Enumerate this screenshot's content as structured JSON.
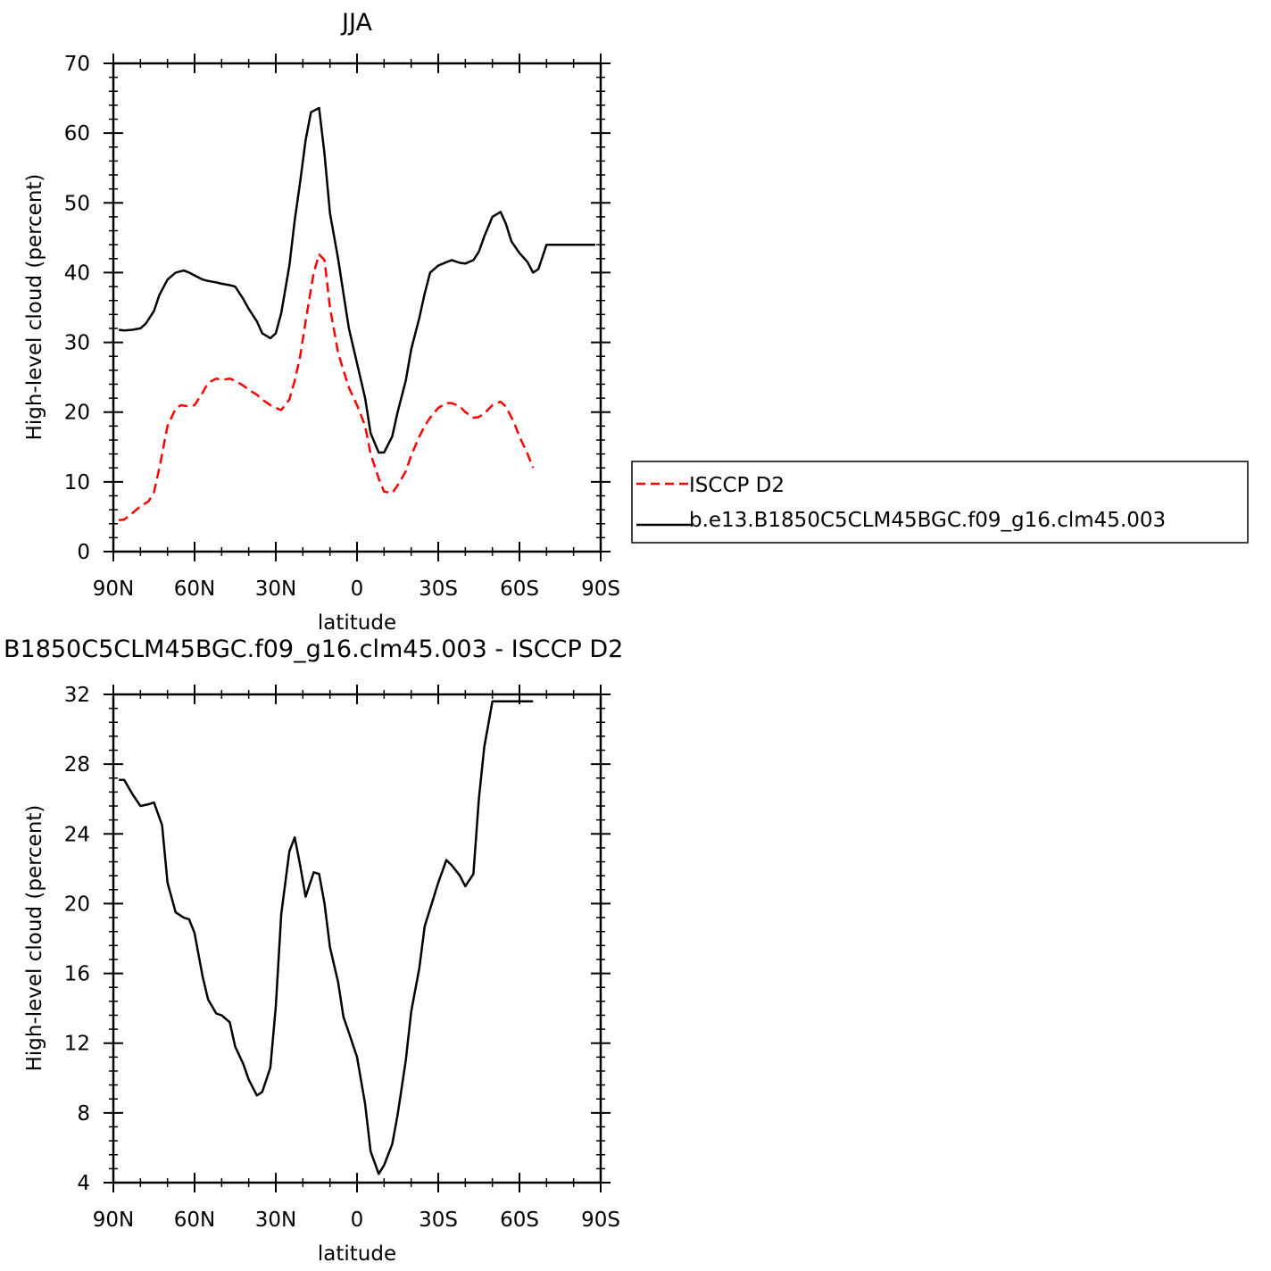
{
  "chart_data": [
    {
      "type": "line",
      "title": "JJA",
      "xlabel": "latitude",
      "ylabel": "High-level cloud (percent)",
      "xlim": [
        -90,
        90
      ],
      "ylim": [
        0,
        70
      ],
      "x_ticks": [
        -90,
        -60,
        -30,
        0,
        30,
        60,
        90
      ],
      "x_tick_labels": [
        "90N",
        "60N",
        "30N",
        "0",
        "30S",
        "60S",
        "90S"
      ],
      "y_ticks": [
        0,
        10,
        20,
        30,
        40,
        50,
        60,
        70
      ],
      "y_tick_labels": [
        "0",
        "10",
        "20",
        "30",
        "40",
        "50",
        "60",
        "70"
      ],
      "legend": "right",
      "series": [
        {
          "name": "ISCCP D2",
          "color": "#ff0000",
          "style": "dashed",
          "x": [
            -88,
            -86,
            -83,
            -80,
            -77,
            -75,
            -73,
            -70,
            -67,
            -65,
            -62,
            -60,
            -57,
            -55,
            -52,
            -50,
            -47,
            -45,
            -42,
            -40,
            -37,
            -35,
            -32,
            -30,
            -28,
            -25,
            -23,
            -21,
            -19,
            -16,
            -14,
            -12,
            -10,
            -7,
            -5,
            -3,
            0,
            3,
            5,
            8,
            10,
            13,
            15,
            18,
            20,
            23,
            25,
            27,
            30,
            33,
            35,
            38,
            40,
            43,
            45,
            47,
            50,
            53,
            55,
            58,
            60,
            63,
            65
          ],
          "values": [
            4.5,
            4.6,
            5.5,
            6.5,
            7.2,
            8.5,
            12,
            18,
            20.5,
            21,
            20.8,
            21,
            22.8,
            24.2,
            24.8,
            24.6,
            24.8,
            24.5,
            23.8,
            23.2,
            22.5,
            21.8,
            21,
            20.6,
            20.3,
            21.8,
            24.5,
            28,
            33,
            40,
            42.6,
            41.8,
            35,
            28.5,
            26,
            23.5,
            21,
            18,
            14,
            10.5,
            8.6,
            8.4,
            9.5,
            11.5,
            13.8,
            16.5,
            18,
            19.2,
            20.6,
            21.3,
            21.3,
            20.8,
            20,
            19.2,
            19.3,
            19.8,
            21,
            21.5,
            20.8,
            18.5,
            16.5,
            14,
            12
          ]
        },
        {
          "name": "b.e13.B1850C5CLM45BGC.f09_g16.clm45.003",
          "color": "#000000",
          "style": "solid",
          "x": [
            -88,
            -86,
            -83,
            -80,
            -78,
            -75,
            -73,
            -70,
            -67,
            -64,
            -62,
            -60,
            -57,
            -55,
            -52,
            -50,
            -47,
            -45,
            -42,
            -40,
            -37,
            -35,
            -32,
            -30,
            -28,
            -25,
            -23,
            -21,
            -19,
            -17,
            -14,
            -12,
            -10,
            -7,
            -5,
            -3,
            0,
            3,
            5,
            8,
            10,
            13,
            15,
            18,
            20,
            23,
            25,
            27,
            30,
            33,
            35,
            38,
            40,
            43,
            45,
            47,
            50,
            53,
            55,
            57,
            60,
            63,
            65,
            67,
            70,
            73,
            75,
            78,
            80,
            83,
            85,
            88
          ],
          "values": [
            31.8,
            31.7,
            31.8,
            32,
            32.7,
            34.5,
            36.8,
            39,
            40,
            40.3,
            40,
            39.6,
            39,
            38.8,
            38.6,
            38.4,
            38.2,
            38,
            36.2,
            34.8,
            33,
            31.3,
            30.6,
            31.3,
            34.2,
            41,
            47.5,
            53,
            59,
            63,
            63.6,
            57,
            48.5,
            42,
            37,
            32,
            27,
            22,
            17,
            14.2,
            14.2,
            16.5,
            20,
            24.5,
            29,
            33.5,
            37,
            40,
            41,
            41.5,
            41.8,
            41.4,
            41.3,
            41.8,
            43,
            45.2,
            48,
            48.7,
            47,
            44.5,
            42.8,
            41.5,
            40,
            40.5,
            44,
            44,
            44,
            44,
            44,
            44,
            44,
            44
          ]
        }
      ]
    },
    {
      "type": "line",
      "title": "B1850C5CLM45BGC.f09_g16.clm45.003 - ISCCP D2",
      "xlabel": "latitude",
      "ylabel": "High-level cloud (percent)",
      "xlim": [
        -90,
        90
      ],
      "ylim": [
        4,
        32
      ],
      "x_ticks": [
        -90,
        -60,
        -30,
        0,
        30,
        60,
        90
      ],
      "x_tick_labels": [
        "90N",
        "60N",
        "30N",
        "0",
        "30S",
        "60S",
        "90S"
      ],
      "y_ticks": [
        4,
        8,
        12,
        16,
        20,
        24,
        28,
        32
      ],
      "y_tick_labels": [
        "4",
        "8",
        "12",
        "16",
        "20",
        "24",
        "28",
        "32"
      ],
      "series": [
        {
          "color": "#000000",
          "style": "solid",
          "x": [
            -88,
            -86,
            -83,
            -80,
            -77,
            -75,
            -72,
            -70,
            -67,
            -64,
            -62,
            -60,
            -57,
            -55,
            -52,
            -50,
            -47,
            -45,
            -42,
            -40,
            -37,
            -35,
            -32,
            -30,
            -28,
            -25,
            -23,
            -21,
            -19,
            -16,
            -14,
            -12,
            -10,
            -7,
            -5,
            -3,
            0,
            3,
            5,
            8,
            10,
            13,
            15,
            18,
            20,
            23,
            25,
            27,
            30,
            33,
            35,
            38,
            40,
            43,
            45,
            47,
            50,
            53,
            55,
            57,
            60,
            62,
            64,
            65
          ],
          "values": [
            27.1,
            27.1,
            26.3,
            25.6,
            25.7,
            25.8,
            24.5,
            21.2,
            19.5,
            19.2,
            19.1,
            18.3,
            15.8,
            14.5,
            13.7,
            13.6,
            13.2,
            11.8,
            10.8,
            9.9,
            9.0,
            9.2,
            10.6,
            14.1,
            19.4,
            23.0,
            23.8,
            22.2,
            20.4,
            21.8,
            21.7,
            20.0,
            17.5,
            15.5,
            13.5,
            12.6,
            11.2,
            8.5,
            5.8,
            4.5,
            5.0,
            6.2,
            7.9,
            11.0,
            13.8,
            16.3,
            18.7,
            19.7,
            21.2,
            22.5,
            22.2,
            21.6,
            21.0,
            21.7,
            26.0,
            29.0,
            31.6,
            31.6,
            31.6,
            31.6,
            31.6,
            31.6,
            31.6,
            31.6
          ]
        }
      ]
    }
  ]
}
